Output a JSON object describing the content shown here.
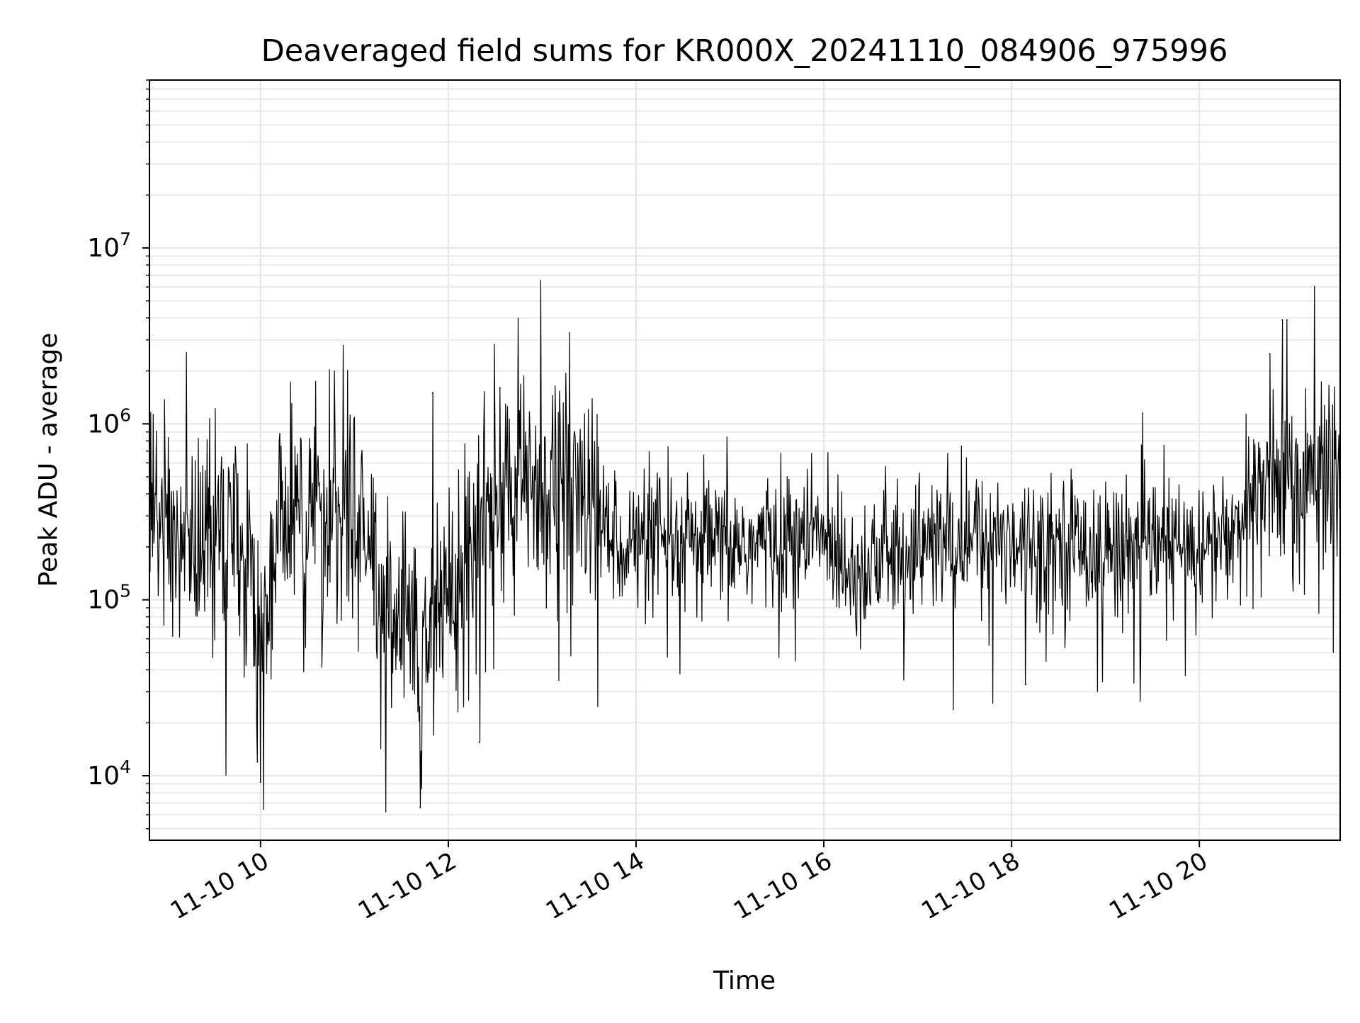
{
  "chart_data": {
    "type": "line",
    "title": "Deaveraged field sums for KR000X_20241110_084906_975996",
    "xlabel": "Time",
    "ylabel": "Peak ADU - average",
    "y_scale": "log",
    "xlim": [
      "11-10 08:49",
      "11-10 21:30"
    ],
    "ylim": [
      4300,
      90000000
    ],
    "x_ticks": [
      {
        "label": "11-10 10",
        "hour": 10
      },
      {
        "label": "11-10 12",
        "hour": 12
      },
      {
        "label": "11-10 14",
        "hour": 14
      },
      {
        "label": "11-10 16",
        "hour": 16
      },
      {
        "label": "11-10 18",
        "hour": 18
      },
      {
        "label": "11-10 20",
        "hour": 20
      }
    ],
    "y_ticks": [
      {
        "base": "10",
        "exp": "4",
        "value": 10000
      },
      {
        "base": "10",
        "exp": "5",
        "value": 100000
      },
      {
        "base": "10",
        "exp": "6",
        "value": 1000000
      },
      {
        "base": "10",
        "exp": "7",
        "value": 10000000
      }
    ],
    "grid": true,
    "line_color": "#000000",
    "grid_color": "#e6e6e6",
    "anchor_points": [
      {
        "time": "11-10 08:49",
        "value": 350000
      },
      {
        "time": "11-10 09:00",
        "value": 250000
      },
      {
        "time": "11-10 09:20",
        "value": 230000
      },
      {
        "time": "11-10 09:40",
        "value": 250000
      },
      {
        "time": "11-10 09:56",
        "value": 150000
      },
      {
        "time": "11-10 10:00",
        "value": 60000
      },
      {
        "time": "11-10 10:10",
        "value": 200000
      },
      {
        "time": "11-10 10:20",
        "value": 400000
      },
      {
        "time": "11-10 10:40",
        "value": 300000
      },
      {
        "time": "11-10 11:00",
        "value": 350000
      },
      {
        "time": "11-10 11:15",
        "value": 120000
      },
      {
        "time": "11-10 11:30",
        "value": 70000
      },
      {
        "time": "11-10 11:45",
        "value": 70000
      },
      {
        "time": "11-10 12:00",
        "value": 120000
      },
      {
        "time": "11-10 12:20",
        "value": 250000
      },
      {
        "time": "11-10 12:40",
        "value": 400000
      },
      {
        "time": "11-10 13:00",
        "value": 500000
      },
      {
        "time": "11-10 13:20",
        "value": 450000
      },
      {
        "time": "11-10 13:40",
        "value": 250000
      },
      {
        "time": "11-10 14:00",
        "value": 200000
      },
      {
        "time": "11-10 15:00",
        "value": 200000
      },
      {
        "time": "11-10 16:00",
        "value": 230000
      },
      {
        "time": "11-10 16:20",
        "value": 150000
      },
      {
        "time": "11-10 17:00",
        "value": 200000
      },
      {
        "time": "11-10 18:00",
        "value": 230000
      },
      {
        "time": "11-10 19:00",
        "value": 200000
      },
      {
        "time": "11-10 20:00",
        "value": 200000
      },
      {
        "time": "11-10 20:30",
        "value": 250000
      },
      {
        "time": "11-10 20:45",
        "value": 550000
      },
      {
        "time": "11-10 21:00",
        "value": 450000
      },
      {
        "time": "11-10 21:30",
        "value": 600000
      }
    ],
    "notable_points": [
      {
        "time": "11-10 11:42",
        "value": 6600
      },
      {
        "time": "11-10 10:00",
        "value": 9200
      },
      {
        "time": "11-10 09:58",
        "value": 12000
      },
      {
        "time": "11-10 20:53",
        "value": 3900000
      },
      {
        "time": "11-10 20:56",
        "value": 3900000
      },
      {
        "time": "11-10 20:45",
        "value": 2500000
      },
      {
        "time": "11-10 12:33",
        "value": 1600000
      },
      {
        "time": "11-10 11:50",
        "value": 1500000
      },
      {
        "time": "11-10 12:20",
        "value": 15500
      },
      {
        "time": "11-10 18:09",
        "value": 33000
      }
    ]
  }
}
